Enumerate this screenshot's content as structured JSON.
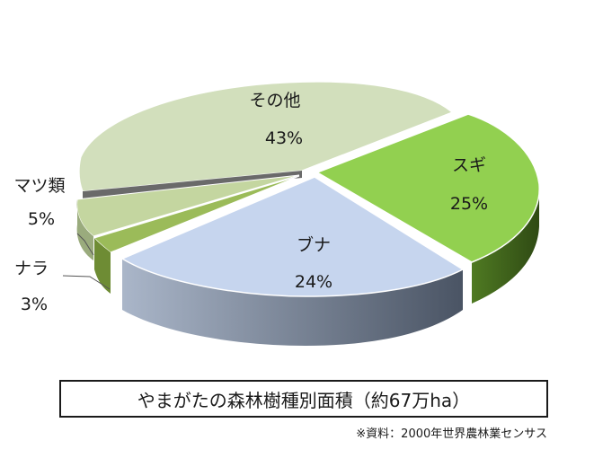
{
  "chart_data": {
    "type": "pie",
    "title": "やまがたの森林樹種別面積（約67万ha）",
    "source": "※資料：2000年世界農林業センサス",
    "slices": [
      {
        "name": "スギ",
        "value": 25,
        "value_label": "25%",
        "color": "#92d050"
      },
      {
        "name": "ブナ",
        "value": 24,
        "value_label": "24%",
        "color": "#c6d5ee"
      },
      {
        "name": "ナラ",
        "value": 3,
        "value_label": "3%",
        "color": "#9bbb59"
      },
      {
        "name": "マツ類",
        "value": 5,
        "value_label": "5%",
        "color": "#c4d6a0"
      },
      {
        "name": "その他",
        "value": 43,
        "value_label": "43%",
        "color": "#d2dfbc"
      }
    ]
  }
}
